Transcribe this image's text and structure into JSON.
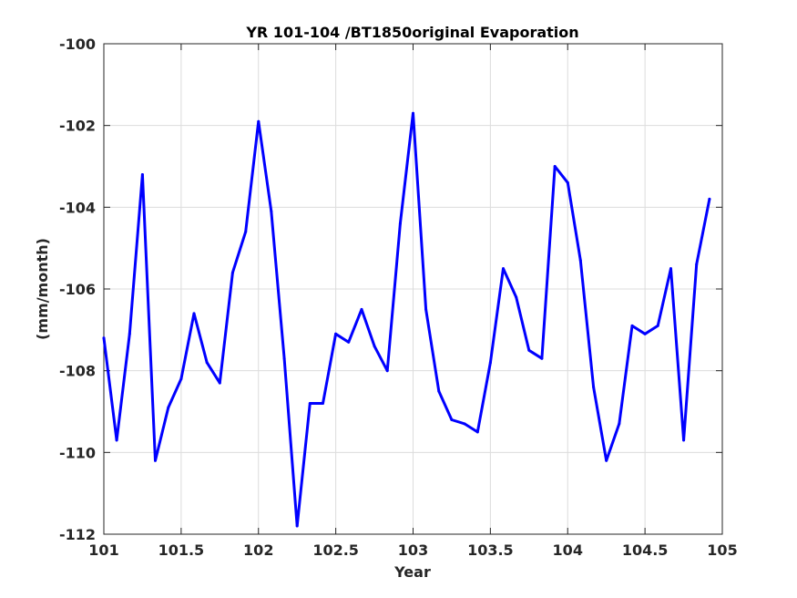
{
  "chart_data": {
    "type": "line",
    "title": "YR 101-104 /BT1850original Evaporation",
    "xlabel": "Year",
    "ylabel": "(mm/month)",
    "xlim": [
      101,
      105
    ],
    "ylim": [
      -112,
      -100
    ],
    "xticks": [
      101,
      101.5,
      102,
      102.5,
      103,
      103.5,
      104,
      104.5,
      105
    ],
    "xtick_labels": [
      "101",
      "101.5",
      "102",
      "102.5",
      "103",
      "103.5",
      "104",
      "104.5",
      "105"
    ],
    "yticks": [
      -112,
      -110,
      -108,
      -106,
      -104,
      -102,
      -100
    ],
    "ytick_labels": [
      "-112",
      "-110",
      "-108",
      "-106",
      "-104",
      "-102",
      "-100"
    ],
    "grid": true,
    "series": [
      {
        "color": "#0000ff",
        "x": [
          101.0,
          101.083,
          101.167,
          101.25,
          101.333,
          101.417,
          101.5,
          101.583,
          101.667,
          101.75,
          101.833,
          101.917,
          102.0,
          102.083,
          102.167,
          102.25,
          102.333,
          102.417,
          102.5,
          102.583,
          102.667,
          102.75,
          102.833,
          102.917,
          103.0,
          103.083,
          103.167,
          103.25,
          103.333,
          103.417,
          103.5,
          103.583,
          103.667,
          103.75,
          103.833,
          103.917,
          104.0,
          104.083,
          104.167,
          104.25,
          104.333,
          104.417,
          104.5,
          104.583,
          104.667,
          104.75,
          104.833,
          104.917
        ],
        "y": [
          -107.2,
          -109.7,
          -107.1,
          -103.2,
          -110.2,
          -108.9,
          -108.2,
          -106.6,
          -107.8,
          -108.3,
          -105.6,
          -104.6,
          -101.9,
          -104.1,
          -107.7,
          -111.8,
          -108.8,
          -108.8,
          -107.1,
          -107.3,
          -106.5,
          -107.4,
          -108.0,
          -104.4,
          -101.7,
          -106.5,
          -108.5,
          -109.2,
          -109.3,
          -109.5,
          -107.8,
          -105.5,
          -106.2,
          -107.5,
          -107.7,
          -103.0,
          -103.4,
          -105.3,
          -108.4,
          -110.2,
          -109.3,
          -106.9,
          -107.1,
          -106.9,
          -105.5,
          -109.7,
          -105.4,
          -103.8
        ]
      }
    ]
  }
}
